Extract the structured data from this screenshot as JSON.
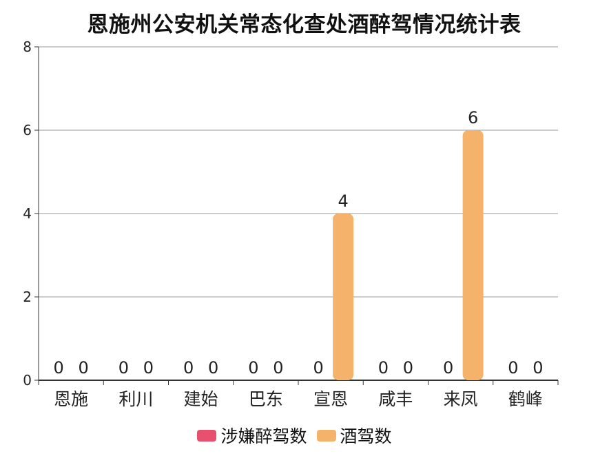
{
  "chart_data": {
    "type": "bar",
    "title": "恩施州公安机关常态化查处酒醉驾情况统计表",
    "categories": [
      "恩施",
      "利川",
      "建始",
      "巴东",
      "宣恩",
      "咸丰",
      "来凤",
      "鹤峰"
    ],
    "series": [
      {
        "name": "涉嫌醉驾数",
        "color": "#e8506f",
        "values": [
          0,
          0,
          0,
          0,
          0,
          0,
          0,
          0
        ]
      },
      {
        "name": "酒驾数",
        "color": "#f5b26b",
        "values": [
          0,
          0,
          0,
          0,
          4,
          0,
          6,
          0
        ]
      }
    ],
    "ylim": [
      0,
      8
    ],
    "yticks": [
      0,
      2,
      4,
      6,
      8
    ],
    "grid": true,
    "data_labels": true,
    "legend_position": "bottom"
  }
}
